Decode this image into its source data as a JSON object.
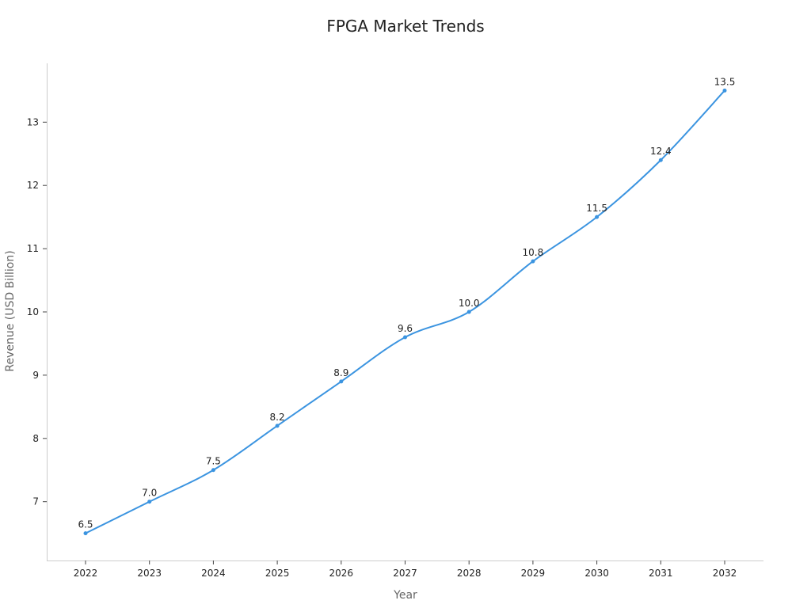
{
  "chart_data": {
    "type": "line",
    "title": "FPGA Market Trends",
    "xlabel": "Year",
    "ylabel": "Revenue (USD Billion)",
    "x": [
      "2022",
      "2023",
      "2024",
      "2025",
      "2026",
      "2027",
      "2028",
      "2029",
      "2030",
      "2031",
      "2032"
    ],
    "series": [
      {
        "values": [
          6.5,
          7.0,
          7.5,
          8.2,
          8.9,
          9.6,
          10.0,
          10.8,
          11.5,
          12.4,
          13.5
        ],
        "data_labels": [
          "6.5",
          "7.0",
          "7.5",
          "8.2",
          "8.9",
          "9.6",
          "10.0",
          "10.8",
          "11.5",
          "12.4",
          "13.5"
        ],
        "color": "#3b94e0"
      }
    ],
    "yticks": [
      7,
      8,
      9,
      10,
      11,
      12,
      13
    ],
    "ylim": [
      6.07,
      13.93
    ],
    "grid": false,
    "legend": "none",
    "smooth": true
  }
}
